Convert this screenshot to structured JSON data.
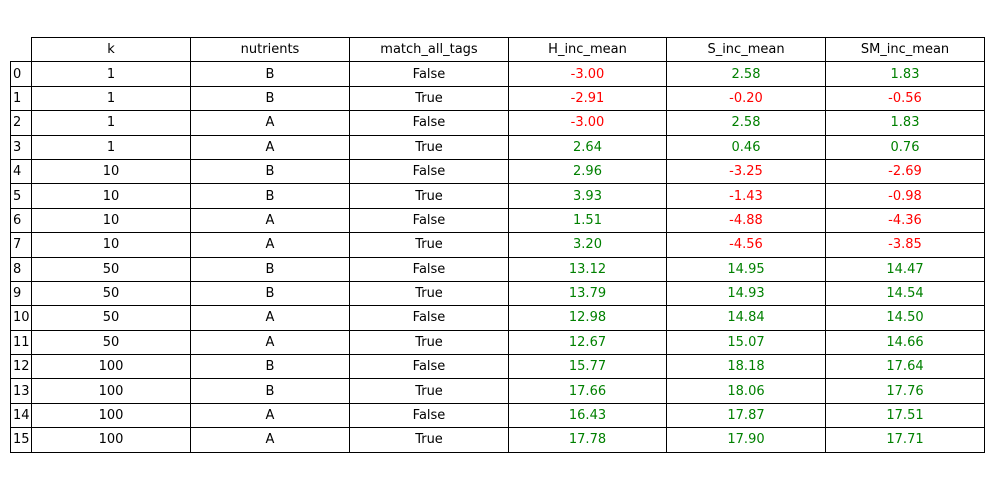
{
  "chart_data": {
    "type": "table",
    "columns": [
      "k",
      "nutrients",
      "match_all_tags",
      "H_inc_mean",
      "S_inc_mean",
      "SM_inc_mean"
    ],
    "index": [
      "0",
      "1",
      "2",
      "3",
      "4",
      "5",
      "6",
      "7",
      "8",
      "9",
      "10",
      "11",
      "12",
      "13",
      "14",
      "15"
    ],
    "rows": [
      [
        "1",
        "B",
        "False",
        "-3.00",
        "2.58",
        "1.83"
      ],
      [
        "1",
        "B",
        "True",
        "-2.91",
        "-0.20",
        "-0.56"
      ],
      [
        "1",
        "A",
        "False",
        "-3.00",
        "2.58",
        "1.83"
      ],
      [
        "1",
        "A",
        "True",
        "2.64",
        "0.46",
        "0.76"
      ],
      [
        "10",
        "B",
        "False",
        "2.96",
        "-3.25",
        "-2.69"
      ],
      [
        "10",
        "B",
        "True",
        "3.93",
        "-1.43",
        "-0.98"
      ],
      [
        "10",
        "A",
        "False",
        "1.51",
        "-4.88",
        "-4.36"
      ],
      [
        "10",
        "A",
        "True",
        "3.20",
        "-4.56",
        "-3.85"
      ],
      [
        "50",
        "B",
        "False",
        "13.12",
        "14.95",
        "14.47"
      ],
      [
        "50",
        "B",
        "True",
        "13.79",
        "14.93",
        "14.54"
      ],
      [
        "50",
        "A",
        "False",
        "12.98",
        "14.84",
        "14.50"
      ],
      [
        "50",
        "A",
        "True",
        "12.67",
        "15.07",
        "14.66"
      ],
      [
        "100",
        "B",
        "False",
        "15.77",
        "18.18",
        "17.64"
      ],
      [
        "100",
        "B",
        "True",
        "17.66",
        "18.06",
        "17.76"
      ],
      [
        "100",
        "A",
        "False",
        "16.43",
        "17.87",
        "17.51"
      ],
      [
        "100",
        "A",
        "True",
        "17.78",
        "17.90",
        "17.71"
      ]
    ],
    "colors": {
      "negative": "#ff0000",
      "positive": "#008000",
      "text": "#000000"
    },
    "colored_columns": [
      "H_inc_mean",
      "S_inc_mean",
      "SM_inc_mean"
    ]
  }
}
